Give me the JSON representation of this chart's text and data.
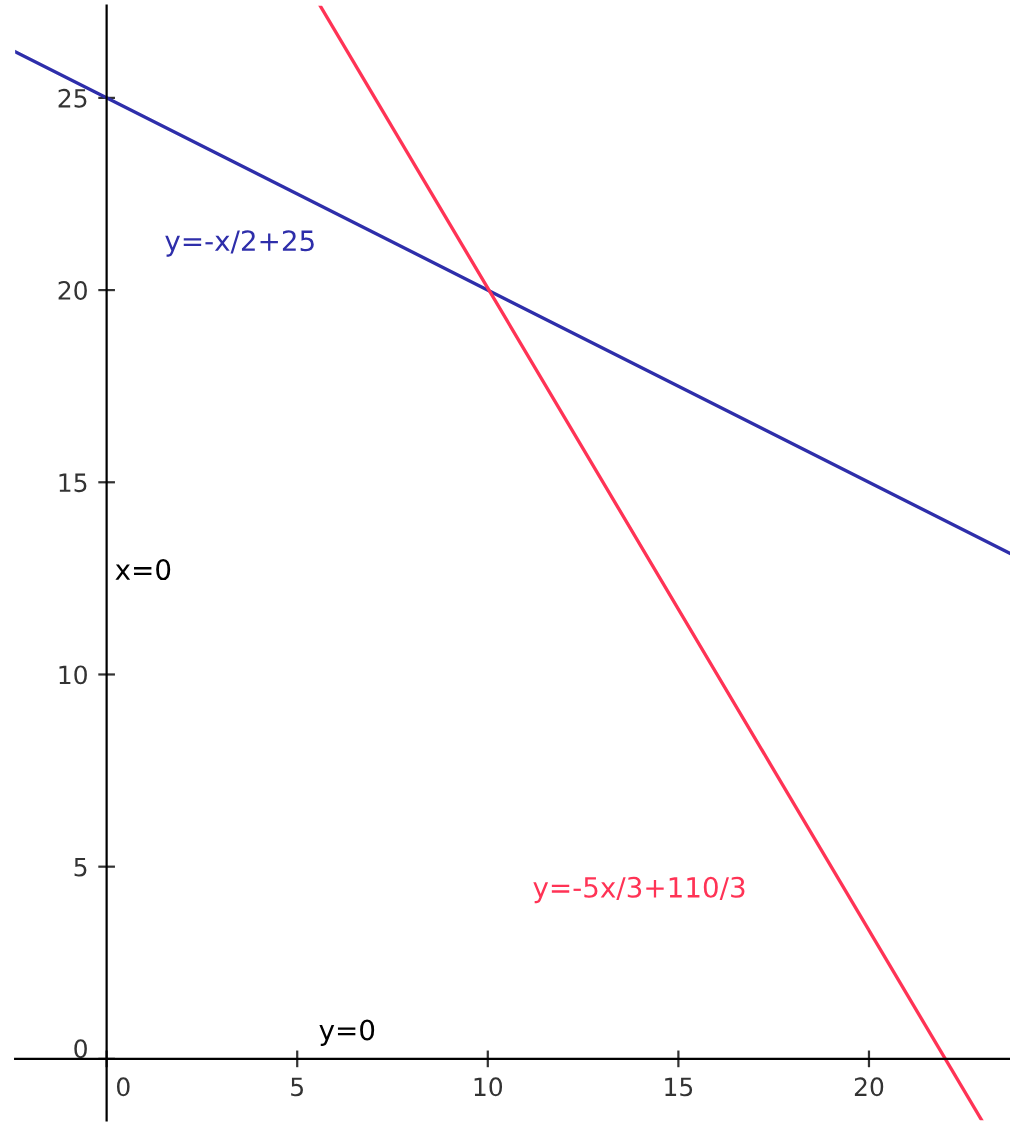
{
  "chart_data": {
    "type": "line",
    "xlim": [
      -2.4,
      23.7
    ],
    "ylim": [
      -1.6,
      27.4
    ],
    "xticks": [
      0,
      5,
      10,
      15,
      20
    ],
    "yticks": [
      0,
      5,
      10,
      15,
      20,
      25
    ],
    "grid": false,
    "marker": "none",
    "line_style": "solid",
    "series": [
      {
        "name": "y=-x/2+25",
        "color": "#2e2eaa",
        "x": [
          -2.4,
          23.7
        ],
        "values": [
          26.2,
          13.15
        ]
      },
      {
        "name": "y=-5x/3+110/3",
        "color": "#ff3355",
        "x": [
          5.6,
          22.96
        ],
        "values": [
          27.4,
          -1.6
        ]
      }
    ],
    "annotations": [
      "x=0",
      "y=0"
    ]
  }
}
